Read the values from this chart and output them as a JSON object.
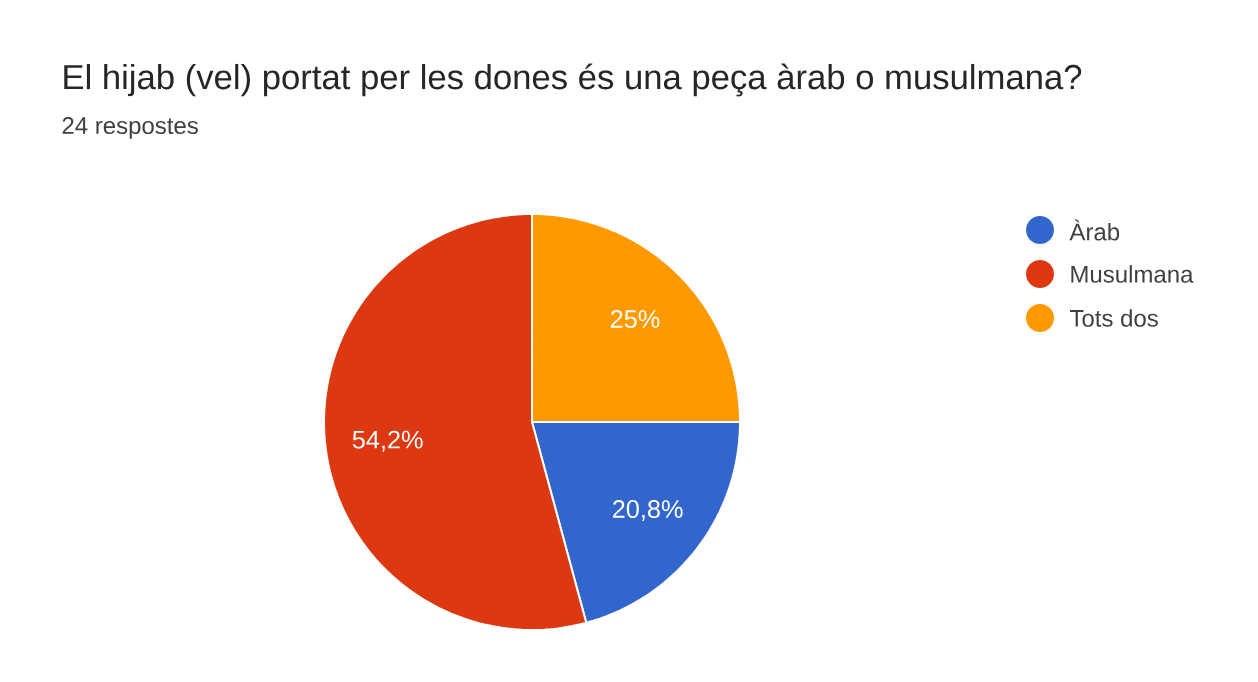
{
  "chart_data": {
    "type": "pie",
    "title": "El hijab (vel) portat per les dones és una peça àrab o musulmana?",
    "subtitle": "24 respostes",
    "categories": [
      "Àrab",
      "Musulmana",
      "Tots dos"
    ],
    "values": [
      20.8,
      54.2,
      25
    ],
    "value_labels": [
      "20,8%",
      "54,2%",
      "25%"
    ],
    "colors": [
      "#3366cc",
      "#dc3912",
      "#ff9900"
    ],
    "legend": "top right"
  }
}
